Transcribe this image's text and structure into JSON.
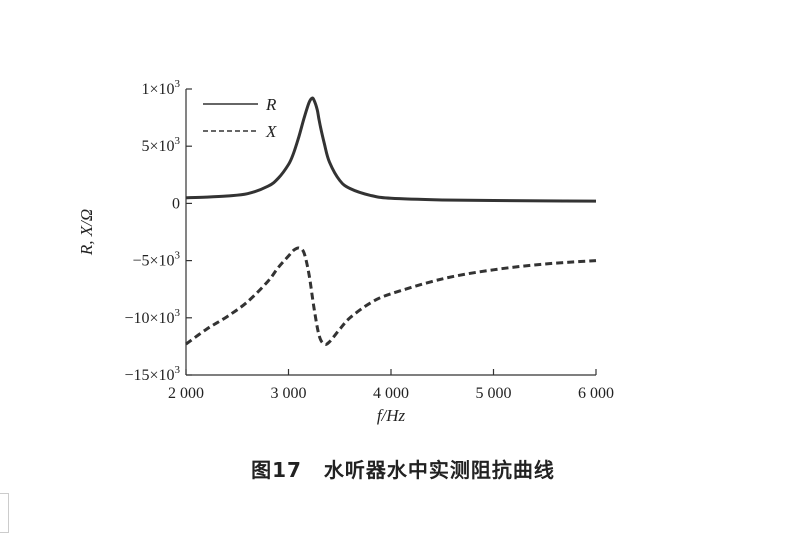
{
  "chart_data": {
    "type": "line",
    "xlabel": "f/Hz",
    "ylabel": "R, X/Ω",
    "xlim": [
      2000,
      6000
    ],
    "ylim": [
      -15000,
      10000
    ],
    "xticks": [
      {
        "value": 2000,
        "label": "2 000"
      },
      {
        "value": 3000,
        "label": "3 000"
      },
      {
        "value": 4000,
        "label": "4 000"
      },
      {
        "value": 5000,
        "label": "5 000"
      },
      {
        "value": 6000,
        "label": "6 000"
      }
    ],
    "yticks": [
      {
        "value": 10000,
        "label": "1×10",
        "exp": "3"
      },
      {
        "value": 5000,
        "label": "5×10",
        "exp": "3"
      },
      {
        "value": 0,
        "label": "0",
        "exp": ""
      },
      {
        "value": -5000,
        "label": "−5×10",
        "exp": "3"
      },
      {
        "value": -10000,
        "label": "−10×10",
        "exp": "3"
      },
      {
        "value": -15000,
        "label": "−15×10",
        "exp": "3"
      }
    ],
    "grid": false,
    "legend_position": "top-left",
    "series": [
      {
        "name": "R",
        "style": "solid",
        "color": "#333333",
        "x": [
          2000,
          2200,
          2400,
          2600,
          2800,
          2900,
          3000,
          3050,
          3100,
          3150,
          3200,
          3230,
          3250,
          3280,
          3300,
          3350,
          3400,
          3500,
          3600,
          3800,
          4000,
          4500,
          5000,
          5500,
          6000
        ],
        "y": [
          500,
          550,
          650,
          850,
          1500,
          2200,
          3400,
          4400,
          5800,
          7400,
          8800,
          9200,
          9000,
          8200,
          7200,
          5200,
          3600,
          2000,
          1300,
          700,
          450,
          300,
          250,
          220,
          200
        ]
      },
      {
        "name": "X",
        "style": "dashed",
        "color": "#333333",
        "x": [
          2000,
          2200,
          2400,
          2600,
          2800,
          2900,
          3000,
          3050,
          3100,
          3150,
          3200,
          3250,
          3300,
          3350,
          3400,
          3500,
          3600,
          3800,
          4000,
          4500,
          5000,
          5500,
          6000
        ],
        "y": [
          -12300,
          -11000,
          -9900,
          -8600,
          -6800,
          -5600,
          -4600,
          -4100,
          -3900,
          -4300,
          -6200,
          -9200,
          -11600,
          -12300,
          -12100,
          -11000,
          -10000,
          -8700,
          -7900,
          -6600,
          -5800,
          -5300,
          -5000
        ]
      }
    ]
  },
  "caption": {
    "number": "图17",
    "title": "水听器水中实测阻抗曲线"
  }
}
